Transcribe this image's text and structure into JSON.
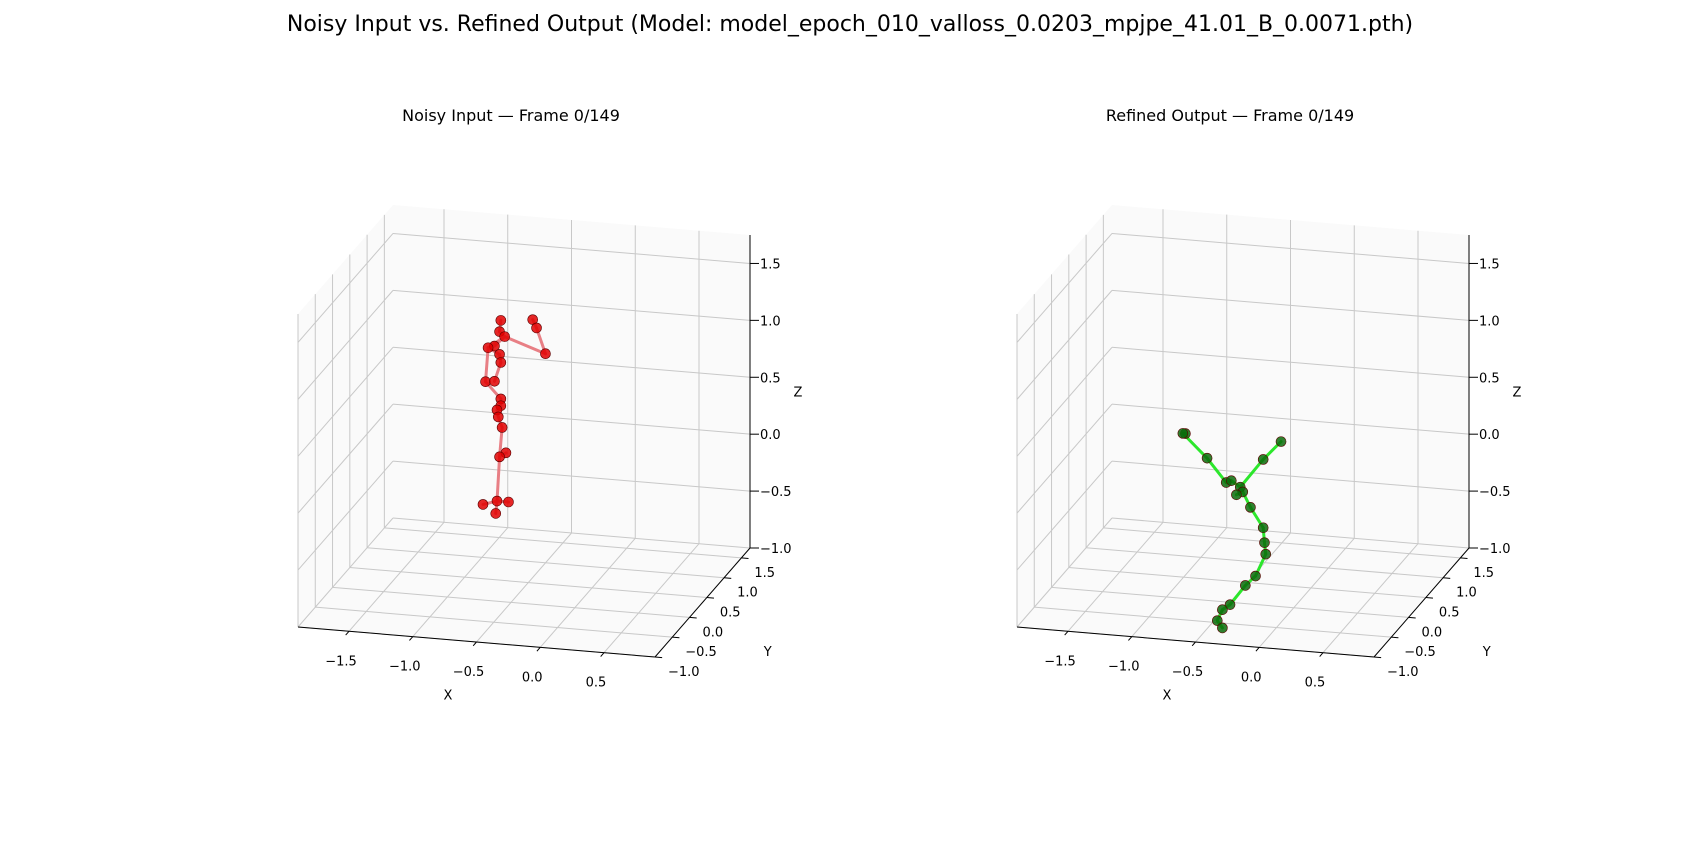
{
  "figure_title": "Noisy Input vs. Refined Output (Model: model_epoch_010_valloss_0.0203_mpjpe_41.01_B_0.0071.pth)",
  "chart_data": [
    {
      "type": "scatter3d",
      "title": "Noisy Input — Frame 0/149",
      "xlabel": "X",
      "ylabel": "Y",
      "zlabel": "Z",
      "xticks": [
        "−1.5",
        "−1.0",
        "−0.5",
        "0.0",
        "0.5"
      ],
      "yticks": [
        "−1.0",
        "−0.5",
        "0.0",
        "0.5",
        "1.0",
        "1.5"
      ],
      "zticks": [
        "−1.0",
        "−0.5",
        "0.0",
        "0.5",
        "1.0",
        "1.5"
      ],
      "xlim": [
        -1.9,
        0.9
      ],
      "ylim": [
        -1.0,
        1.75
      ],
      "zlim": [
        -1.0,
        1.75
      ],
      "grid": true,
      "marker_color": "#e00000",
      "line_color": "#e8797f",
      "joints": [
        [
          -0.58,
          0.0,
          1.47
        ],
        [
          -0.59,
          0.0,
          1.37
        ],
        [
          -0.55,
          0.0,
          1.33
        ],
        [
          -0.33,
          0.0,
          1.5
        ],
        [
          -0.3,
          0.0,
          1.43
        ],
        [
          -0.23,
          0.0,
          1.21
        ],
        [
          -0.63,
          0.0,
          1.24
        ],
        [
          -0.68,
          0.0,
          1.22
        ],
        [
          -0.59,
          0.0,
          1.17
        ],
        [
          -0.58,
          0.0,
          1.1
        ],
        [
          -0.7,
          0.0,
          0.92
        ],
        [
          -0.63,
          0.0,
          0.93
        ],
        [
          -0.58,
          0.0,
          0.78
        ],
        [
          -0.58,
          0.0,
          0.72
        ],
        [
          -0.61,
          0.0,
          0.68
        ],
        [
          -0.6,
          0.0,
          0.62
        ],
        [
          -0.57,
          0.0,
          0.53
        ],
        [
          -0.54,
          0.0,
          0.31
        ],
        [
          -0.59,
          0.0,
          0.27
        ],
        [
          -0.61,
          0.0,
          -0.12
        ],
        [
          -0.72,
          0.0,
          -0.16
        ],
        [
          -0.52,
          0.0,
          -0.12
        ],
        [
          -0.62,
          0.0,
          -0.23
        ]
      ],
      "bones": [
        [
          0,
          1
        ],
        [
          1,
          2
        ],
        [
          2,
          6
        ],
        [
          3,
          4
        ],
        [
          4,
          5
        ],
        [
          5,
          2
        ],
        [
          2,
          7
        ],
        [
          7,
          8
        ],
        [
          8,
          9
        ],
        [
          9,
          11
        ],
        [
          7,
          10
        ],
        [
          10,
          12
        ],
        [
          12,
          13
        ],
        [
          13,
          14
        ],
        [
          14,
          15
        ],
        [
          15,
          16
        ],
        [
          16,
          18
        ],
        [
          18,
          17
        ],
        [
          18,
          19
        ],
        [
          19,
          20
        ],
        [
          19,
          21
        ],
        [
          19,
          22
        ]
      ]
    },
    {
      "type": "scatter3d",
      "title": "Refined Output — Frame 0/149",
      "xlabel": "X",
      "ylabel": "Y",
      "zlabel": "Z",
      "xticks": [
        "−1.5",
        "−1.0",
        "−0.5",
        "0.0",
        "0.5"
      ],
      "yticks": [
        "−1.0",
        "−0.5",
        "0.0",
        "0.5",
        "1.0",
        "1.5"
      ],
      "zticks": [
        "−1.0",
        "−0.5",
        "0.0",
        "0.5",
        "1.0",
        "1.5"
      ],
      "xlim": [
        -1.9,
        0.9
      ],
      "ylim": [
        -1.0,
        1.75
      ],
      "zlim": [
        -1.0,
        1.75
      ],
      "grid": true,
      "marker_color": "#0a6a0a",
      "line_color": "#22e622",
      "joints": [
        [
          -0.85,
          0.0,
          0.45
        ],
        [
          -0.87,
          0.0,
          0.45
        ],
        [
          -0.68,
          0.0,
          0.25
        ],
        [
          -0.53,
          0.0,
          0.05
        ],
        [
          -0.49,
          0.0,
          0.07
        ],
        [
          -0.42,
          0.0,
          0.02
        ],
        [
          -0.4,
          0.0,
          -0.02
        ],
        [
          -0.45,
          0.0,
          -0.05
        ],
        [
          -0.34,
          0.0,
          -0.15
        ],
        [
          -0.24,
          0.0,
          0.28
        ],
        [
          -0.1,
          0.0,
          0.45
        ],
        [
          -0.24,
          0.0,
          -0.32
        ],
        [
          -0.23,
          0.0,
          -0.45
        ],
        [
          -0.22,
          0.0,
          -0.55
        ],
        [
          -0.3,
          0.0,
          -0.75
        ],
        [
          -0.38,
          0.0,
          -0.84
        ],
        [
          -0.5,
          0.0,
          -1.02
        ],
        [
          -0.56,
          0.0,
          -1.07
        ],
        [
          -0.6,
          0.0,
          -1.17
        ],
        [
          -0.56,
          0.0,
          -1.23
        ]
      ],
      "bones": [
        [
          0,
          1
        ],
        [
          1,
          2
        ],
        [
          2,
          3
        ],
        [
          3,
          4
        ],
        [
          4,
          5
        ],
        [
          5,
          6
        ],
        [
          6,
          7
        ],
        [
          6,
          8
        ],
        [
          5,
          9
        ],
        [
          9,
          10
        ],
        [
          8,
          11
        ],
        [
          11,
          12
        ],
        [
          12,
          13
        ],
        [
          13,
          14
        ],
        [
          14,
          15
        ],
        [
          15,
          16
        ],
        [
          16,
          17
        ],
        [
          17,
          18
        ],
        [
          18,
          19
        ]
      ]
    }
  ]
}
